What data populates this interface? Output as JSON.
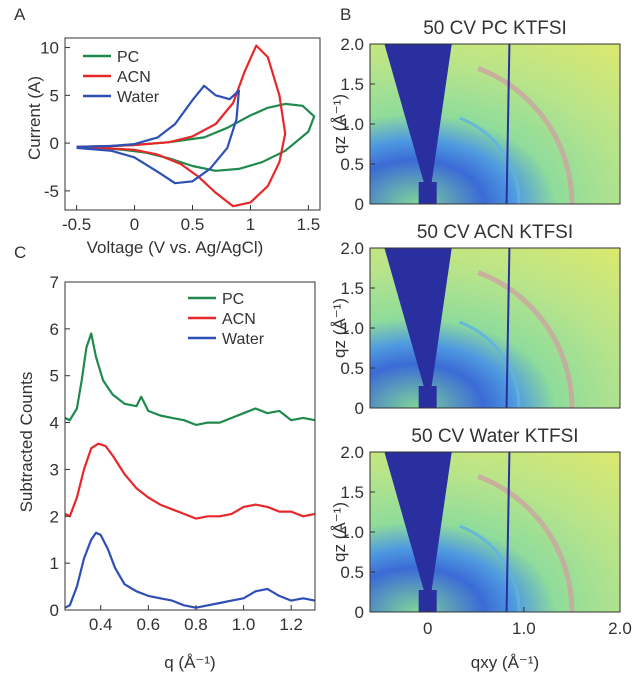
{
  "panels": {
    "a": "A",
    "b": "B",
    "c": "C"
  },
  "colors": {
    "pc": "#1f8a4c",
    "acn": "#e8272a",
    "water": "#2e4fb5",
    "axis": "#333333",
    "map_low": "#2a2fa0",
    "map_mid": "#7fd49a",
    "map_high": "#d8e870",
    "ring": "#c9a8a0"
  },
  "chart_data": [
    {
      "id": "cv",
      "type": "line",
      "xlabel": "Voltage (V vs. Ag/AgCl)",
      "ylabel": "Current (A)",
      "xlim": [
        -0.6,
        1.6
      ],
      "ylim": [
        -7,
        11
      ],
      "xticks": [
        "-0.5",
        "0",
        "0.5",
        "1",
        "1.5"
      ],
      "yticks": [
        "-5",
        "0",
        "5",
        "10"
      ],
      "legend": {
        "placement": "top-left",
        "entries": [
          "PC",
          "ACN",
          "Water"
        ]
      },
      "series": [
        {
          "name": "PC",
          "color_key": "pc",
          "x": [
            -0.5,
            -0.2,
            0.0,
            0.3,
            0.6,
            0.8,
            1.0,
            1.15,
            1.3,
            1.45,
            1.55,
            1.5,
            1.3,
            1.1,
            0.9,
            0.7,
            0.5,
            0.3,
            0.1,
            -0.1,
            -0.3,
            -0.5
          ],
          "y": [
            -0.4,
            -0.3,
            -0.2,
            0.1,
            0.6,
            1.6,
            2.9,
            3.7,
            4.1,
            3.9,
            2.8,
            1.2,
            -0.8,
            -2.0,
            -2.7,
            -2.9,
            -2.4,
            -1.6,
            -1.0,
            -0.7,
            -0.5,
            -0.4
          ]
        },
        {
          "name": "ACN",
          "color_key": "acn",
          "x": [
            -0.5,
            -0.2,
            0.0,
            0.3,
            0.5,
            0.7,
            0.85,
            0.95,
            1.05,
            1.15,
            1.25,
            1.3,
            1.25,
            1.15,
            1.0,
            0.85,
            0.7,
            0.55,
            0.4,
            0.2,
            0.0,
            -0.3,
            -0.5
          ],
          "y": [
            -0.4,
            -0.3,
            -0.2,
            0.1,
            0.7,
            2.0,
            4.2,
            7.5,
            10.2,
            9.0,
            5.0,
            1.0,
            -2.0,
            -4.5,
            -6.2,
            -6.6,
            -5.2,
            -3.5,
            -2.2,
            -1.2,
            -0.7,
            -0.5,
            -0.4
          ]
        },
        {
          "name": "Water",
          "color_key": "water",
          "x": [
            -0.5,
            -0.2,
            0.0,
            0.2,
            0.35,
            0.5,
            0.6,
            0.7,
            0.82,
            0.9,
            0.88,
            0.8,
            0.65,
            0.5,
            0.35,
            0.2,
            0.0,
            -0.2,
            -0.5
          ],
          "y": [
            -0.4,
            -0.3,
            -0.1,
            0.6,
            2.0,
            4.5,
            6.0,
            5.0,
            4.6,
            5.5,
            2.5,
            -0.5,
            -2.7,
            -4.0,
            -4.2,
            -3.0,
            -1.5,
            -0.8,
            -0.5
          ]
        }
      ]
    },
    {
      "id": "scattering",
      "type": "line",
      "xlabel": "q (Å⁻¹)",
      "ylabel": "Subtracted Counts",
      "xlim": [
        0.25,
        1.3
      ],
      "ylim": [
        0,
        7
      ],
      "xticks": [
        "0.4",
        "0.6",
        "0.8",
        "1.0",
        "1.2"
      ],
      "yticks": [
        "0",
        "1",
        "2",
        "3",
        "4",
        "5",
        "6",
        "7"
      ],
      "legend": {
        "placement": "top-right",
        "entries": [
          "PC",
          "ACN",
          "Water"
        ]
      },
      "series": [
        {
          "name": "PC",
          "color_key": "pc",
          "x": [
            0.25,
            0.27,
            0.3,
            0.32,
            0.34,
            0.36,
            0.38,
            0.41,
            0.45,
            0.5,
            0.55,
            0.57,
            0.6,
            0.65,
            0.7,
            0.75,
            0.8,
            0.85,
            0.9,
            0.95,
            1.0,
            1.05,
            1.1,
            1.15,
            1.2,
            1.25,
            1.3
          ],
          "y": [
            4.1,
            4.05,
            4.3,
            4.9,
            5.6,
            5.9,
            5.4,
            4.9,
            4.6,
            4.4,
            4.35,
            4.55,
            4.25,
            4.15,
            4.1,
            4.05,
            3.95,
            4.0,
            4.0,
            4.1,
            4.2,
            4.3,
            4.2,
            4.25,
            4.05,
            4.1,
            4.05
          ]
        },
        {
          "name": "ACN",
          "color_key": "acn",
          "x": [
            0.25,
            0.27,
            0.3,
            0.33,
            0.36,
            0.39,
            0.42,
            0.45,
            0.5,
            0.55,
            0.6,
            0.65,
            0.7,
            0.75,
            0.8,
            0.85,
            0.9,
            0.95,
            1.0,
            1.05,
            1.1,
            1.15,
            1.2,
            1.25,
            1.3
          ],
          "y": [
            2.05,
            2.0,
            2.4,
            3.0,
            3.45,
            3.55,
            3.5,
            3.3,
            2.9,
            2.6,
            2.4,
            2.25,
            2.15,
            2.05,
            1.95,
            2.0,
            2.0,
            2.05,
            2.2,
            2.25,
            2.2,
            2.1,
            2.1,
            2.0,
            2.05
          ]
        },
        {
          "name": "Water",
          "color_key": "water",
          "x": [
            0.25,
            0.27,
            0.3,
            0.33,
            0.36,
            0.38,
            0.4,
            0.43,
            0.46,
            0.5,
            0.55,
            0.6,
            0.65,
            0.7,
            0.75,
            0.8,
            0.85,
            0.9,
            0.95,
            1.0,
            1.05,
            1.1,
            1.15,
            1.2,
            1.25,
            1.3
          ],
          "y": [
            0.05,
            0.1,
            0.5,
            1.1,
            1.5,
            1.65,
            1.6,
            1.3,
            0.9,
            0.55,
            0.4,
            0.3,
            0.25,
            0.2,
            0.1,
            0.05,
            0.1,
            0.15,
            0.2,
            0.25,
            0.4,
            0.45,
            0.3,
            0.2,
            0.25,
            0.2
          ]
        }
      ]
    },
    {
      "id": "giwaxs",
      "type": "heatmap",
      "xlabel": "qxy (Å⁻¹)",
      "ylabel": "qz (Å⁻¹)",
      "xlim": [
        -0.6,
        2.0
      ],
      "ylim": [
        0,
        2.0
      ],
      "xticks": [
        "0",
        "1.0",
        "2.0"
      ],
      "yticks": [
        "0",
        "0.5",
        "1.0",
        "1.5",
        "2.0"
      ],
      "maps": [
        {
          "title": "50 CV PC KTFSI"
        },
        {
          "title": "50 CV ACN KTFSI"
        },
        {
          "title": "50 CV Water KTFSI"
        }
      ]
    }
  ]
}
